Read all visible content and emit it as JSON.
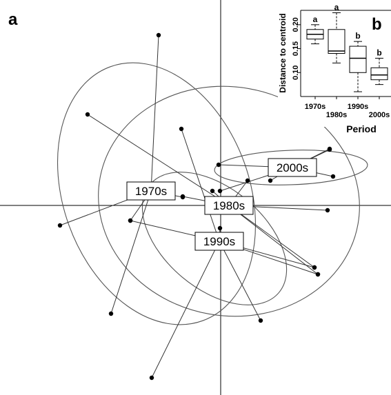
{
  "figure": {
    "panel_a": "a",
    "panel_b": "b"
  },
  "chart_data": [
    {
      "type": "scatter",
      "panel": "a",
      "xlim": [
        -320,
        247
      ],
      "ylim": [
        -275,
        298
      ],
      "axes_lines": "origin crosshair",
      "groups": [
        {
          "name": "1970s",
          "centroid": [
            -101,
            21
          ],
          "ellipse": {
            "rx": 135,
            "ry": 196,
            "angle": -20,
            "center": [
              -93,
              17
            ]
          },
          "points": [
            [
              -90,
              247
            ],
            [
              -233,
              -29
            ],
            [
              -131,
              -22
            ],
            [
              -159,
              -157
            ],
            [
              -55,
              12
            ]
          ]
        },
        {
          "name": "1980s",
          "centroid": [
            12,
            0
          ],
          "ellipse": {
            "rx": 190,
            "ry": 166,
            "angle": 10,
            "center": [
              12,
              6
            ]
          },
          "points": [
            [
              -193,
              132
            ],
            [
              -12,
              21
            ],
            [
              -55,
              13
            ],
            [
              155,
              -7
            ],
            [
              141,
              -100
            ],
            [
              136,
              -90
            ],
            [
              39,
              36
            ]
          ]
        },
        {
          "name": "1990s",
          "centroid": [
            -2,
            -52
          ],
          "ellipse": {
            "rx": 122,
            "ry": 73,
            "angle": 40,
            "center": [
              -9,
              -48
            ]
          },
          "points": [
            [
              -57,
              111
            ],
            [
              -1,
              -33
            ],
            [
              -100,
              -250
            ],
            [
              58,
              -167
            ],
            [
              136,
              -90
            ],
            [
              141,
              -100
            ],
            [
              -131,
              -22
            ]
          ]
        },
        {
          "name": "2000s",
          "centroid": [
            104,
            55
          ],
          "ellipse": {
            "rx": 111,
            "ry": 25,
            "angle": -2,
            "center": [
              102,
              55
            ]
          },
          "points": [
            [
              158,
              81
            ],
            [
              -3,
              59
            ],
            [
              158,
              82
            ],
            [
              163,
              42
            ],
            [
              -1,
              21
            ],
            [
              72,
              36
            ]
          ]
        }
      ]
    },
    {
      "type": "box",
      "panel": "b",
      "title": "",
      "xlabel": "Period",
      "ylabel": "Distance to centroid",
      "categories": [
        "1970s",
        "1980s",
        "1990s",
        "2000s"
      ],
      "ylim": [
        0.05,
        0.23
      ],
      "yticks": [
        0.1,
        0.15,
        0.2
      ],
      "ytick_labels": [
        "0.10",
        "0.15",
        "0.20"
      ],
      "boxes": [
        {
          "name": "1970s",
          "min": 0.16,
          "q1": 0.17,
          "median": 0.18,
          "q3": 0.19,
          "max": 0.2,
          "group_letter": "a"
        },
        {
          "name": "1980s",
          "min": 0.12,
          "q1": 0.14,
          "median": 0.145,
          "q3": 0.19,
          "max": 0.225,
          "group_letter": "a"
        },
        {
          "name": "1990s",
          "min": 0.06,
          "q1": 0.1,
          "median": 0.13,
          "q3": 0.155,
          "max": 0.165,
          "group_letter": "b"
        },
        {
          "name": "2000s",
          "min": 0.075,
          "q1": 0.085,
          "median": 0.095,
          "q3": 0.11,
          "max": 0.13,
          "group_letter": "b"
        }
      ]
    }
  ]
}
